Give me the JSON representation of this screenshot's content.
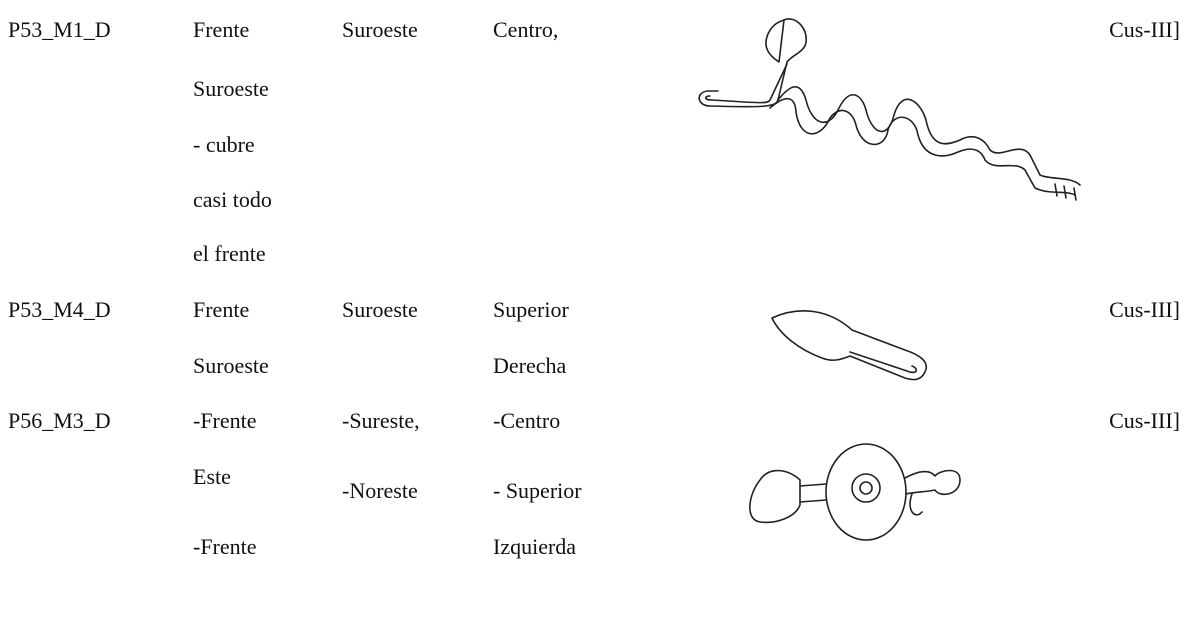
{
  "table": {
    "rows": [
      [
        [
          "P53_M1_D"
        ],
        [
          "Frente",
          "Suroeste",
          "- cubre",
          "casi todo",
          "el frente"
        ],
        [
          "Suroeste"
        ],
        [
          "Centro,"
        ],
        [
          "Cus-III]"
        ]
      ],
      [
        [
          "P53_M4_D"
        ],
        [
          "Frente",
          "Suroeste"
        ],
        [
          "Suroeste"
        ],
        [
          "Superior",
          "Derecha"
        ],
        [
          "Cus-III]"
        ]
      ],
      [
        [
          "P56_M3_D"
        ],
        [
          "-Frente",
          "Este",
          "-Frente"
        ],
        [
          "-Sureste,",
          "-Noreste"
        ],
        [
          "-Centro",
          "- Superior",
          "Izquierda"
        ],
        [
          "Cus-III]"
        ]
      ]
    ]
  }
}
